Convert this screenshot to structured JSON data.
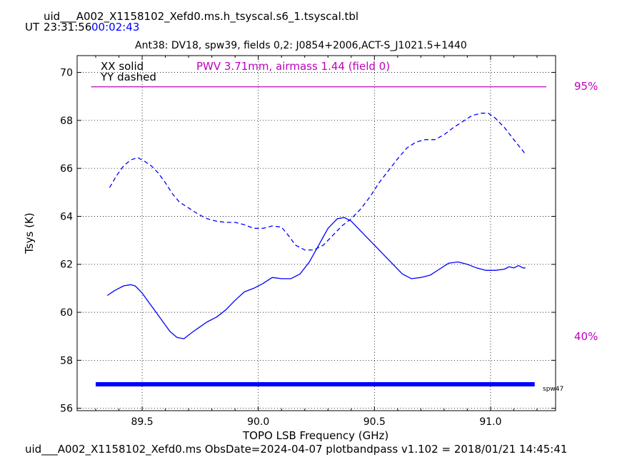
{
  "header": {
    "table_name": "uid___A002_X1158102_Xefd0.ms.h_tsyscal.s6_1.tsyscal.tbl",
    "ut_label": "UT",
    "ut_start": "23:31:56",
    "ut_duration": "00:02:43"
  },
  "footer": {
    "text": "uid___A002_X1158102_Xefd0.ms  ObsDate=2024-04-07   plotbandpass v1.102 = 2018/01/21 14:45:41"
  },
  "colors": {
    "data": "#0000ff",
    "pwv": "#c000c0",
    "axis": "#000000"
  },
  "chart_data": {
    "type": "line",
    "title": "Ant38: DV18,  spw39,  fields 0,2: J0854+2006,ACT-S_J1021.5+1440",
    "xlabel": "TOPO LSB Frequency (GHz)",
    "ylabel": "Tsys (K)",
    "xlim": [
      89.22,
      91.28
    ],
    "ylim": [
      55.9,
      70.7
    ],
    "xticks": [
      89.5,
      90.0,
      90.5,
      91.0
    ],
    "xtick_labels": [
      "89.5",
      "90.0",
      "90.5",
      "91.0"
    ],
    "yticks": [
      56,
      58,
      60,
      62,
      64,
      66,
      68,
      70
    ],
    "ytick_labels": [
      "56",
      "58",
      "60",
      "62",
      "64",
      "66",
      "68",
      "70"
    ],
    "grid": true,
    "legend": [
      {
        "label": "XX solid",
        "style": "solid"
      },
      {
        "label": "YY dashed",
        "style": "dashed"
      }
    ],
    "pwv_annotation": "PWV 3.71mm, airmass 1.44 (field 0)",
    "series": [
      {
        "name": "XX",
        "style": "solid",
        "x": [
          89.35,
          89.38,
          89.42,
          89.45,
          89.47,
          89.5,
          89.53,
          89.56,
          89.59,
          89.62,
          89.65,
          89.68,
          89.7,
          89.72,
          89.75,
          89.78,
          89.82,
          89.86,
          89.9,
          89.94,
          89.98,
          90.02,
          90.06,
          90.1,
          90.14,
          90.18,
          90.22,
          90.26,
          90.3,
          90.34,
          90.37,
          90.4,
          90.43,
          90.46,
          90.5,
          90.54,
          90.58,
          90.62,
          90.66,
          90.7,
          90.74,
          90.78,
          90.82,
          90.86,
          90.9,
          90.94,
          90.98,
          91.02,
          91.06,
          91.08,
          91.1,
          91.12,
          91.14,
          91.15
        ],
        "y": [
          60.7,
          60.9,
          61.1,
          61.15,
          61.1,
          60.8,
          60.4,
          60.0,
          59.6,
          59.2,
          58.95,
          58.9,
          59.05,
          59.2,
          59.4,
          59.6,
          59.8,
          60.1,
          60.5,
          60.85,
          61.0,
          61.2,
          61.45,
          61.4,
          61.4,
          61.6,
          62.1,
          62.8,
          63.5,
          63.9,
          63.95,
          63.8,
          63.5,
          63.2,
          62.8,
          62.4,
          62.0,
          61.6,
          61.4,
          61.45,
          61.55,
          61.8,
          62.05,
          62.1,
          62.0,
          61.85,
          61.75,
          61.75,
          61.8,
          61.9,
          61.85,
          61.95,
          61.85,
          61.85
        ]
      },
      {
        "name": "YY",
        "style": "dashed",
        "x": [
          89.36,
          89.39,
          89.42,
          89.45,
          89.48,
          89.51,
          89.54,
          89.57,
          89.6,
          89.63,
          89.66,
          89.7,
          89.74,
          89.78,
          89.82,
          89.86,
          89.9,
          89.94,
          89.98,
          90.02,
          90.06,
          90.1,
          90.13,
          90.16,
          90.2,
          90.24,
          90.28,
          90.32,
          90.36,
          90.4,
          90.44,
          90.48,
          90.52,
          90.56,
          90.6,
          90.64,
          90.68,
          90.72,
          90.76,
          90.8,
          90.84,
          90.88,
          90.92,
          90.96,
          90.99,
          91.02,
          91.06,
          91.1,
          91.15
        ],
        "y": [
          65.2,
          65.7,
          66.1,
          66.35,
          66.45,
          66.3,
          66.1,
          65.8,
          65.4,
          64.95,
          64.6,
          64.35,
          64.1,
          63.9,
          63.8,
          63.75,
          63.75,
          63.65,
          63.5,
          63.5,
          63.6,
          63.55,
          63.2,
          62.8,
          62.6,
          62.6,
          62.8,
          63.2,
          63.6,
          63.9,
          64.3,
          64.8,
          65.4,
          65.9,
          66.4,
          66.85,
          67.1,
          67.2,
          67.2,
          67.4,
          67.7,
          67.95,
          68.2,
          68.3,
          68.3,
          68.1,
          67.7,
          67.2,
          66.6
        ]
      }
    ],
    "pwv_line": {
      "x": [
        89.28,
        91.24
      ],
      "transmission": 0.95
    },
    "spw_bar": {
      "x": [
        89.3,
        91.19
      ],
      "y": 57.0,
      "label": "spw47"
    },
    "right_axis_labels": [
      {
        "text": "95%",
        "y": 69.4
      },
      {
        "text": "40%",
        "y": 58.95
      }
    ]
  }
}
